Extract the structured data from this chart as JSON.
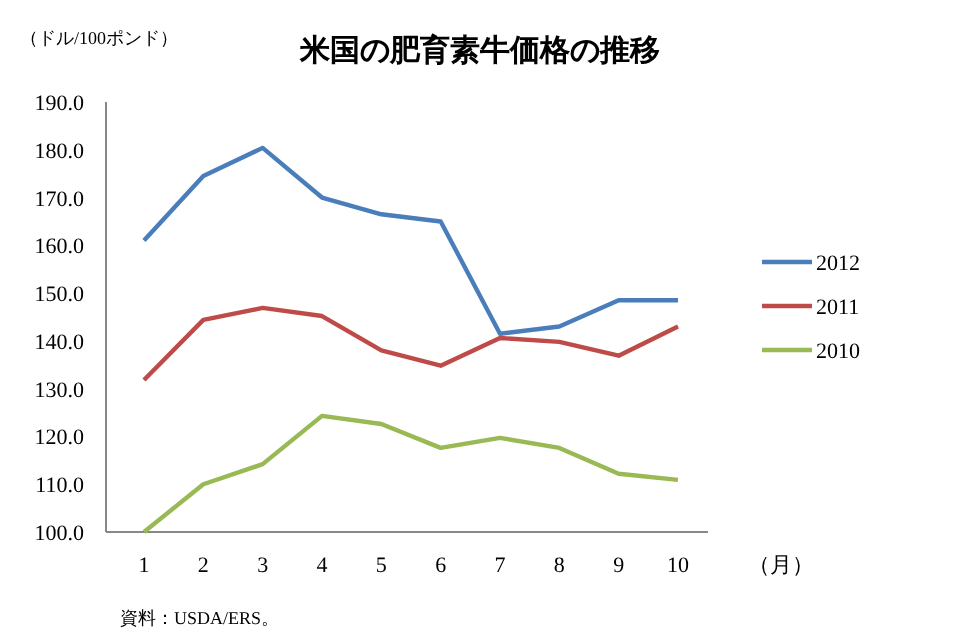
{
  "chart_data": {
    "type": "line",
    "title": "米国の肥育素牛価格の推移",
    "ylabel": "（ドル/100ポンド）",
    "xlabel": "（月）",
    "annotations": [
      "資料：USDA/ERS。"
    ],
    "categories": [
      "1",
      "2",
      "3",
      "4",
      "5",
      "6",
      "7",
      "8",
      "9",
      "10"
    ],
    "series": [
      {
        "name": "2012",
        "color": "#4a7ebb",
        "values": [
          161,
          174.5,
          180.4,
          170,
          166.5,
          165,
          141.5,
          143,
          148.5,
          148.5
        ]
      },
      {
        "name": "2011",
        "color": "#be4b48",
        "values": [
          131.8,
          144.4,
          146.9,
          145.2,
          138,
          134.8,
          140.6,
          139.8,
          136.9,
          143
        ]
      },
      {
        "name": "2010",
        "color": "#98b954",
        "values": [
          100,
          110,
          114.2,
          124.3,
          122.6,
          117.6,
          119.7,
          117.6,
          112.2,
          110.9
        ]
      }
    ],
    "ylim": [
      100,
      190
    ],
    "yticks": [
      {
        "value": 100,
        "label": "100.0"
      },
      {
        "value": 110,
        "label": "110.0"
      },
      {
        "value": 120,
        "label": "120.0"
      },
      {
        "value": 130,
        "label": "130.0"
      },
      {
        "value": 140,
        "label": "140.0"
      },
      {
        "value": 150,
        "label": "150.0"
      },
      {
        "value": 160,
        "label": "160.0"
      },
      {
        "value": 170,
        "label": "170.0"
      },
      {
        "value": 180,
        "label": "180.0"
      },
      {
        "value": 190,
        "label": "190.0"
      }
    ],
    "grid": false,
    "legend": "right",
    "marker": "none",
    "line_style": "solid"
  }
}
